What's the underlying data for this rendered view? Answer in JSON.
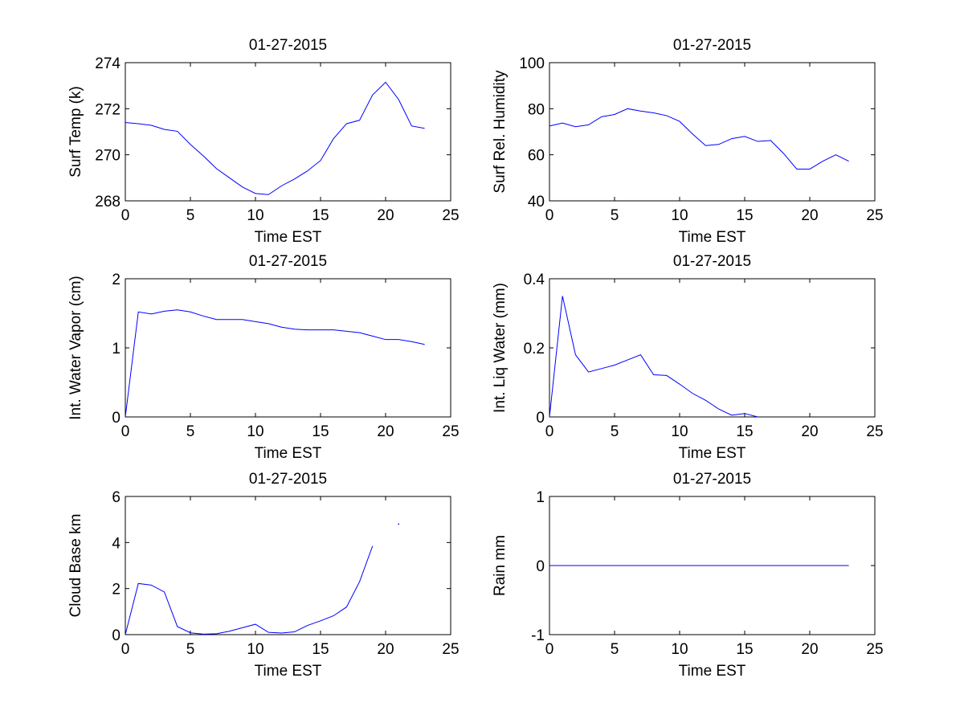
{
  "colors": {
    "line": "#0000ff",
    "axis": "#000000",
    "background": "#ffffff"
  },
  "chart_data": [
    {
      "type": "line",
      "title": "01-27-2015",
      "xlabel": "Time EST",
      "ylabel": "Surf Temp (k)",
      "xlim": [
        0,
        25
      ],
      "ylim": [
        268,
        274
      ],
      "xticks": [
        "0",
        "5",
        "10",
        "15",
        "20",
        "25"
      ],
      "yticks": [
        "268",
        "270",
        "272",
        "274"
      ],
      "grid": false,
      "series": [
        {
          "x": [
            0,
            1,
            2,
            3,
            4,
            5,
            6,
            7,
            8,
            9,
            10,
            11,
            12,
            13,
            14,
            15,
            16,
            17,
            18,
            19,
            20,
            21,
            22,
            23
          ],
          "y": [
            271.4,
            271.35,
            271.28,
            271.1,
            271.02,
            270.45,
            269.95,
            269.4,
            269.0,
            268.6,
            268.32,
            268.27,
            268.65,
            268.95,
            269.3,
            269.75,
            270.7,
            271.35,
            271.5,
            272.6,
            273.15,
            272.4,
            271.25,
            271.15
          ]
        }
      ]
    },
    {
      "type": "line",
      "title": "01-27-2015",
      "xlabel": "Time EST",
      "ylabel": "Surf Rel. Humidity",
      "xlim": [
        0,
        25
      ],
      "ylim": [
        40,
        100
      ],
      "xticks": [
        "0",
        "5",
        "10",
        "15",
        "20",
        "25"
      ],
      "yticks": [
        "40",
        "60",
        "80",
        "100"
      ],
      "grid": false,
      "series": [
        {
          "x": [
            0,
            1,
            2,
            3,
            4,
            5,
            6,
            7,
            8,
            9,
            10,
            11,
            12,
            13,
            14,
            15,
            16,
            17,
            18,
            19,
            20,
            21,
            22,
            23
          ],
          "y": [
            72.5,
            73.8,
            72.2,
            73.0,
            76.5,
            77.5,
            80.0,
            79.0,
            78.2,
            77.0,
            74.5,
            69.0,
            64.0,
            64.5,
            67.0,
            68.0,
            65.8,
            66.2,
            60.5,
            53.8,
            53.8,
            57.2,
            60.0,
            57.2
          ]
        }
      ]
    },
    {
      "type": "line",
      "title": "01-27-2015",
      "xlabel": "Time EST",
      "ylabel": "Int. Water Vapor (cm)",
      "xlim": [
        0,
        25
      ],
      "ylim": [
        0,
        2
      ],
      "xticks": [
        "0",
        "5",
        "10",
        "15",
        "20",
        "25"
      ],
      "yticks": [
        "0",
        "1",
        "2"
      ],
      "grid": false,
      "series": [
        {
          "x": [
            0,
            1,
            2,
            3,
            4,
            5,
            6,
            7,
            8,
            9,
            10,
            11,
            12,
            13,
            14,
            15,
            16,
            17,
            18,
            19,
            20,
            21,
            22,
            23
          ],
          "y": [
            0.0,
            1.52,
            1.49,
            1.53,
            1.55,
            1.52,
            1.46,
            1.41,
            1.41,
            1.41,
            1.38,
            1.35,
            1.3,
            1.27,
            1.26,
            1.26,
            1.26,
            1.24,
            1.22,
            1.17,
            1.12,
            1.12,
            1.09,
            1.05
          ]
        }
      ]
    },
    {
      "type": "line",
      "title": "01-27-2015",
      "xlabel": "Time EST",
      "ylabel": "Int. Liq Water (mm)",
      "xlim": [
        0,
        25
      ],
      "ylim": [
        0,
        0.4
      ],
      "xticks": [
        "0",
        "5",
        "10",
        "15",
        "20",
        "25"
      ],
      "yticks": [
        "0",
        "0.2",
        "0.4"
      ],
      "grid": false,
      "series": [
        {
          "x": [
            0,
            1,
            2,
            3,
            4,
            5,
            6,
            7,
            8,
            9,
            10,
            11,
            12,
            13,
            14,
            15,
            16
          ],
          "y": [
            0.0,
            0.35,
            0.18,
            0.13,
            0.14,
            0.15,
            0.165,
            0.18,
            0.122,
            0.12,
            0.095,
            0.068,
            0.048,
            0.023,
            0.005,
            0.01,
            0.0
          ]
        }
      ]
    },
    {
      "type": "line",
      "title": "01-27-2015",
      "xlabel": "Time EST",
      "ylabel": "Cloud Base km",
      "xlim": [
        0,
        25
      ],
      "ylim": [
        0,
        6
      ],
      "xticks": [
        "0",
        "5",
        "10",
        "15",
        "20",
        "25"
      ],
      "yticks": [
        "0",
        "2",
        "4",
        "6"
      ],
      "grid": false,
      "series": [
        {
          "x": [
            0,
            1,
            2,
            3,
            4,
            5,
            6,
            7,
            8,
            9,
            10,
            11,
            12,
            13,
            14,
            15,
            16,
            17,
            18,
            19
          ],
          "y": [
            0.0,
            2.22,
            2.15,
            1.85,
            0.35,
            0.08,
            0.02,
            0.04,
            0.15,
            0.3,
            0.45,
            0.1,
            0.07,
            0.12,
            0.4,
            0.6,
            0.82,
            1.2,
            2.3,
            3.85
          ]
        },
        {
          "x": [
            21
          ],
          "y": [
            4.8
          ],
          "marker_only": true
        }
      ]
    },
    {
      "type": "line",
      "title": "01-27-2015",
      "xlabel": "Time EST",
      "ylabel": "Rain mm",
      "xlim": [
        0,
        25
      ],
      "ylim": [
        -1,
        1
      ],
      "xticks": [
        "0",
        "5",
        "10",
        "15",
        "20",
        "25"
      ],
      "yticks": [
        "-1",
        "0",
        "1"
      ],
      "grid": false,
      "series": [
        {
          "x": [
            0,
            1,
            2,
            3,
            4,
            5,
            6,
            7,
            8,
            9,
            10,
            11,
            12,
            13,
            14,
            15,
            16,
            17,
            18,
            19,
            20,
            21,
            22,
            23
          ],
          "y": [
            0,
            0,
            0,
            0,
            0,
            0,
            0,
            0,
            0,
            0,
            0,
            0,
            0,
            0,
            0,
            0,
            0,
            0,
            0,
            0,
            0,
            0,
            0,
            0
          ]
        }
      ]
    }
  ]
}
